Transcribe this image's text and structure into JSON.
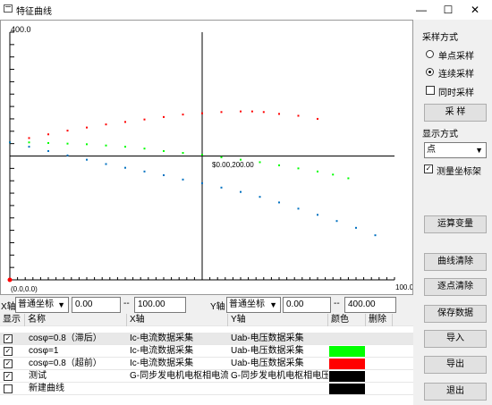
{
  "window": {
    "title": "特征曲线",
    "min_icon": "minimize-icon",
    "max_icon": "maximize-icon",
    "close_icon": "close-icon"
  },
  "plot": {
    "y_top_label": "400.0",
    "origin_label": "(0.0,0.0)",
    "x_right_label": "100.0",
    "center_label": "$0.00,200.00"
  },
  "chart_data": {
    "type": "scatter",
    "x_range": [
      0,
      100
    ],
    "y_range": [
      0,
      400
    ],
    "series": [
      {
        "name": "cosφ=0.8（超前）",
        "color": "#ff0000",
        "points": [
          [
            0,
            222
          ],
          [
            5,
            229
          ],
          [
            10,
            235
          ],
          [
            15,
            241
          ],
          [
            20,
            246
          ],
          [
            25,
            251
          ],
          [
            30,
            255
          ],
          [
            35,
            259
          ],
          [
            40,
            263
          ],
          [
            45,
            267
          ],
          [
            50,
            269
          ],
          [
            55,
            271
          ],
          [
            60,
            272
          ],
          [
            63,
            272
          ],
          [
            66,
            271
          ],
          [
            70,
            268
          ],
          [
            75,
            265
          ],
          [
            80,
            260
          ]
        ]
      },
      {
        "name": "cosφ=1",
        "color": "#00ff00",
        "points": [
          [
            0,
            222
          ],
          [
            5,
            222
          ],
          [
            10,
            221
          ],
          [
            15,
            220
          ],
          [
            20,
            219
          ],
          [
            25,
            217
          ],
          [
            30,
            215
          ],
          [
            35,
            212
          ],
          [
            40,
            208
          ],
          [
            45,
            205
          ],
          [
            50,
            202
          ],
          [
            55,
            198
          ],
          [
            60,
            194
          ],
          [
            65,
            190
          ],
          [
            70,
            185
          ],
          [
            75,
            180
          ],
          [
            80,
            175
          ],
          [
            84,
            170
          ],
          [
            88,
            164
          ]
        ]
      },
      {
        "name": "cosφ=0.8（滞后）",
        "color": "#0070c0",
        "points": [
          [
            0,
            222
          ],
          [
            5,
            215
          ],
          [
            10,
            208
          ],
          [
            15,
            201
          ],
          [
            20,
            194
          ],
          [
            25,
            187
          ],
          [
            30,
            181
          ],
          [
            35,
            175
          ],
          [
            40,
            169
          ],
          [
            45,
            162
          ],
          [
            50,
            156
          ],
          [
            55,
            149
          ],
          [
            60,
            142
          ],
          [
            65,
            134
          ],
          [
            70,
            125
          ],
          [
            75,
            115
          ],
          [
            80,
            105
          ],
          [
            85,
            95
          ],
          [
            90,
            84
          ],
          [
            95,
            72
          ]
        ]
      }
    ]
  },
  "right_panel": {
    "sample_mode_label": "采样方式",
    "single_sample": "单点采样",
    "continuous_sample": "连续采样",
    "simultaneous_sample": "同时采样",
    "sample_button": "采  样",
    "display_mode_label": "显示方式",
    "display_mode_value": "点",
    "measure_axis": "测量坐标架",
    "compute_button": "运算变量",
    "clear_curve_button": "曲线清除",
    "clear_point_button": "逐点清除",
    "save_button": "保存数据",
    "import_button": "导入",
    "export_button": "导出",
    "exit_button": "退出"
  },
  "axis_controls": {
    "x_label": "X轴",
    "x_type": "普通坐标",
    "x_min": "0.00",
    "x_sep": "--",
    "x_max": "100.00",
    "y_label": "Y轴",
    "y_type": "普通坐标",
    "y_min": "0.00",
    "y_sep": "--",
    "y_max": "400.00"
  },
  "table": {
    "headers": [
      "显示",
      "名称",
      "X轴",
      "Y轴",
      "颜色",
      "删除"
    ],
    "rows": [
      {
        "checked": "✓",
        "name": "cosφ=0.8（滞后）",
        "x": "Ic-电流数据采集",
        "y": "Uab-电压数据采集",
        "color": ""
      },
      {
        "checked": "✓",
        "name": "cosφ=1",
        "x": "Ic-电流数据采集",
        "y": "Uab-电压数据采集",
        "color": "#00ff00"
      },
      {
        "checked": "✓",
        "name": "cosφ=0.8（超前）",
        "x": "Ic-电流数据采集",
        "y": "Uab-电压数据采集",
        "color": "#ff0000"
      },
      {
        "checked": "✓",
        "name": "测试",
        "x": "G-同步发电机电枢相电流",
        "y": "G-同步发电机电枢相电压",
        "color": "#000000"
      },
      {
        "checked": "",
        "name": "新建曲线",
        "x": "",
        "y": "",
        "color": "#000000"
      }
    ]
  }
}
